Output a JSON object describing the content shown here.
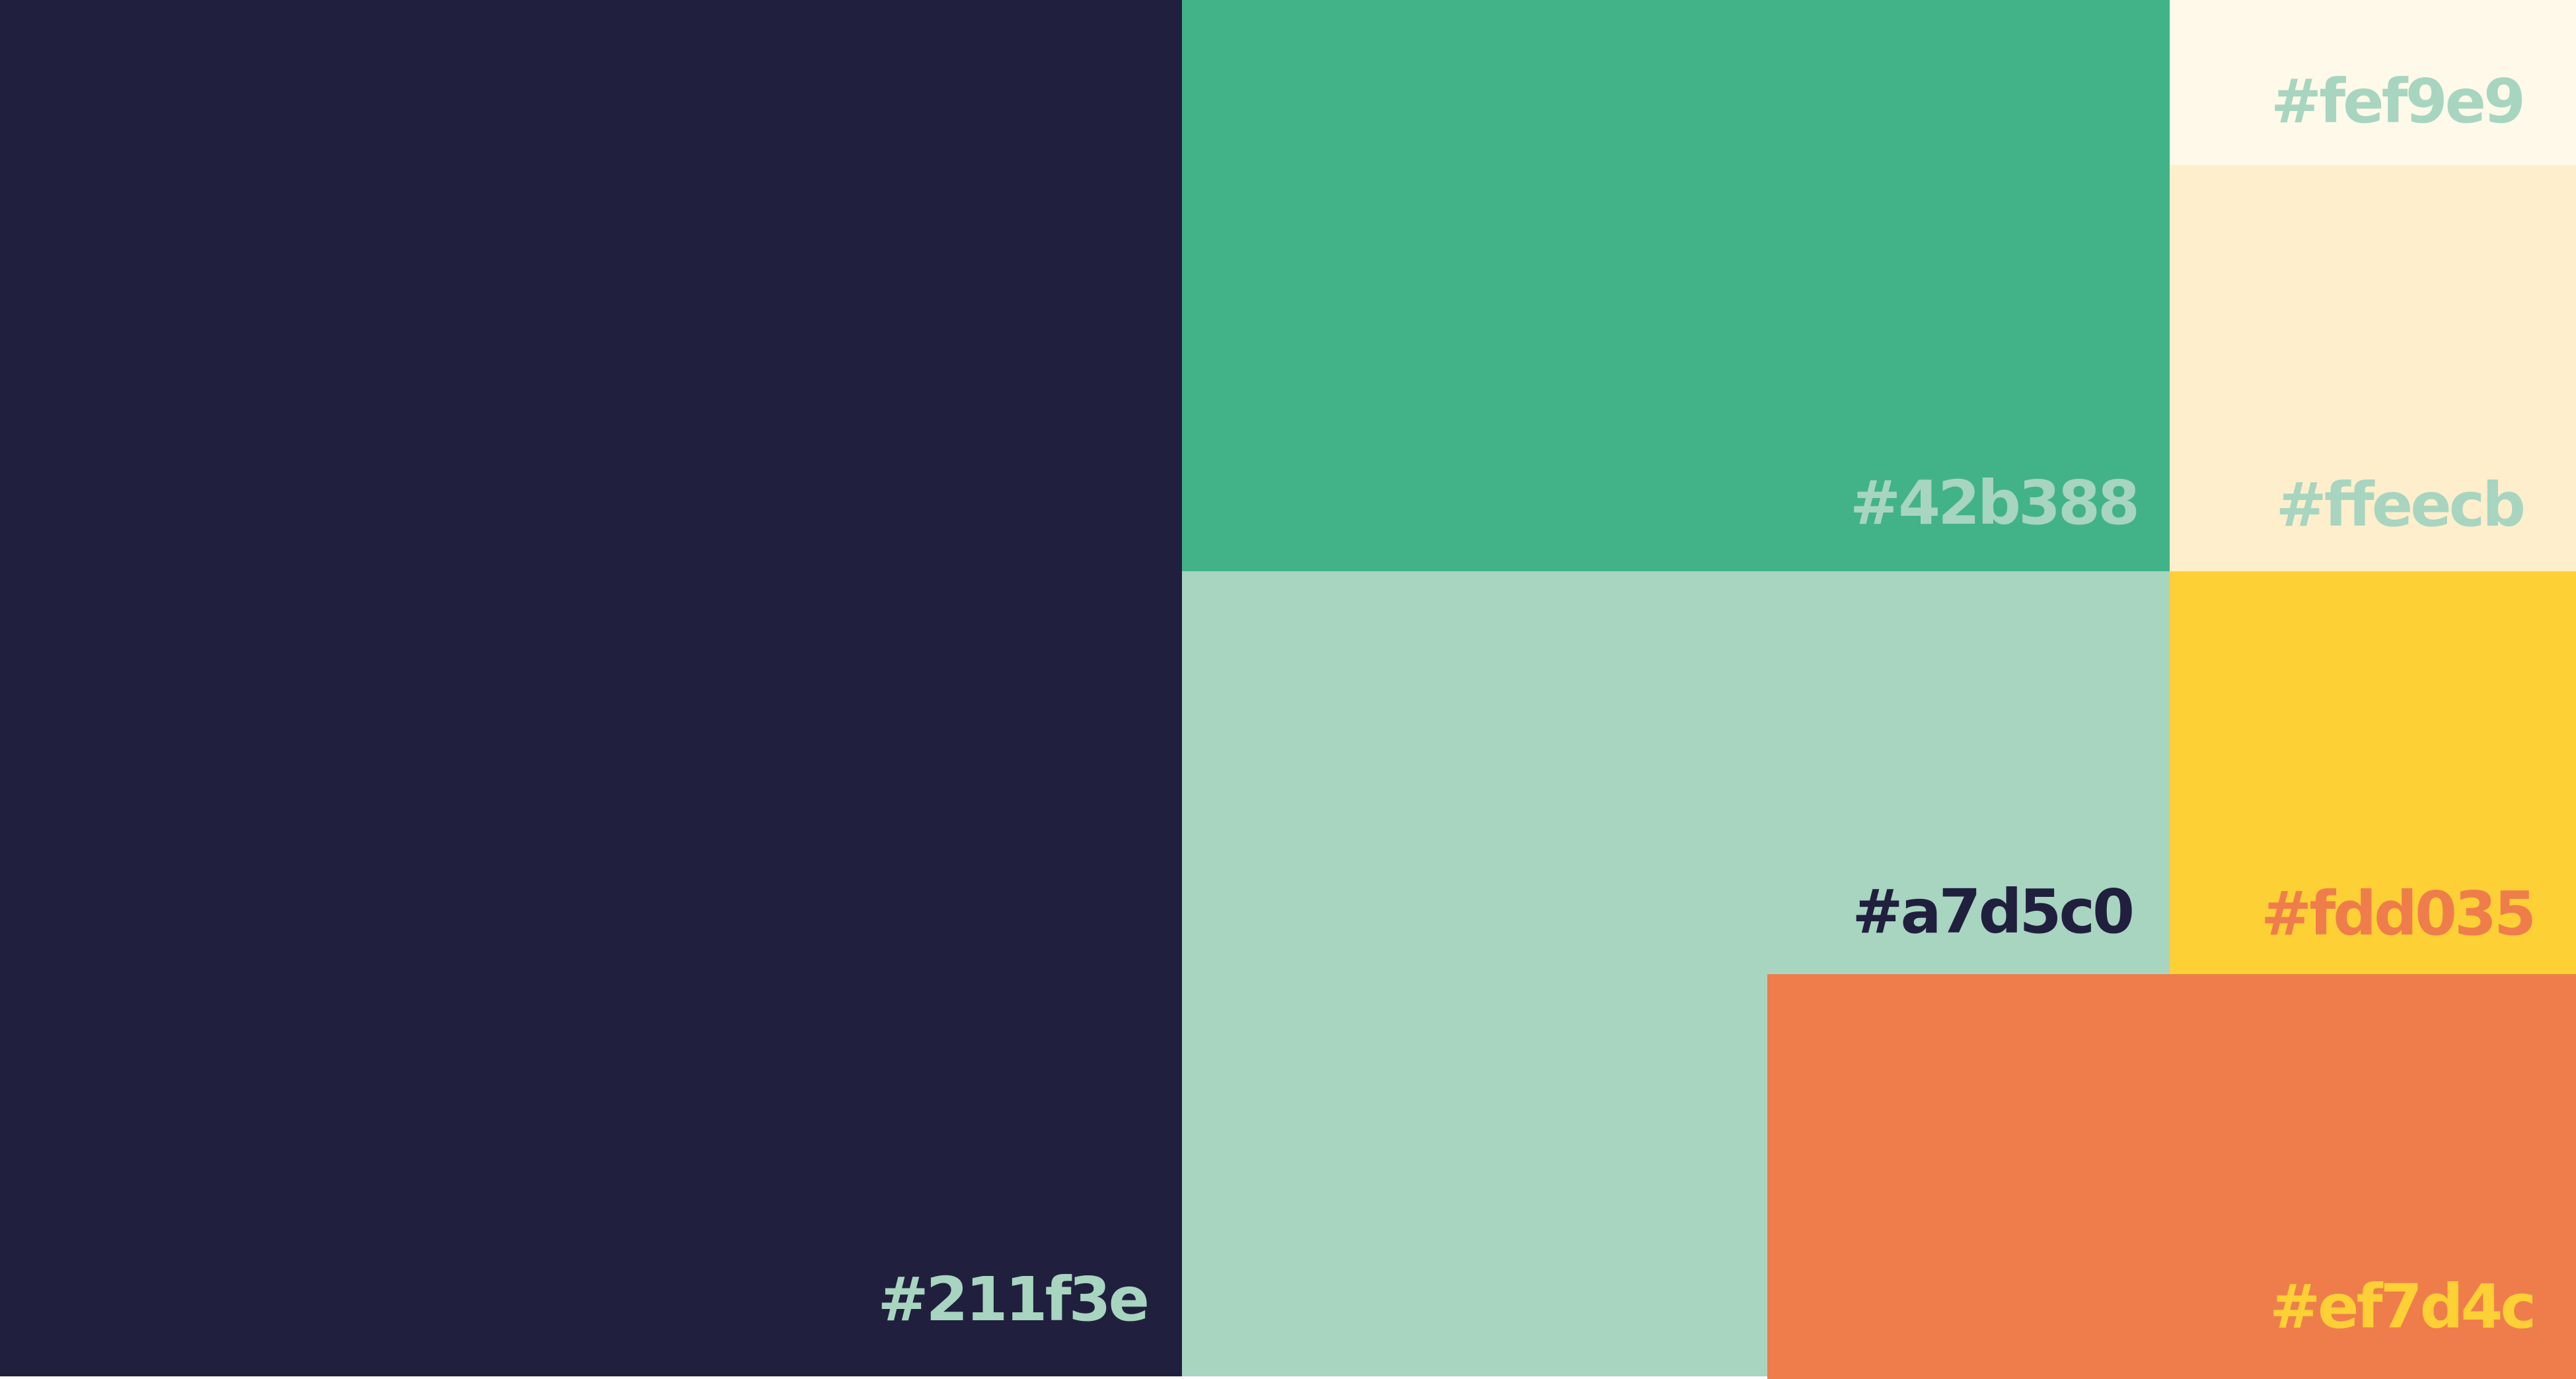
{
  "palette": {
    "swatches": [
      {
        "id": "sw-1",
        "color": "#211f3e",
        "label": "#211f3e",
        "label_color": "#a7d5c0"
      },
      {
        "id": "sw-2",
        "color": "#42b388",
        "label": "#42b388",
        "label_color": "#a7d5c0"
      },
      {
        "id": "sw-3",
        "color": "#fef9e9",
        "label": "#fef9e9",
        "label_color": "#a7d5c0"
      },
      {
        "id": "sw-4",
        "color": "#ffeecb",
        "label": "#ffeecb",
        "label_color": "#a7d5c0"
      },
      {
        "id": "sw-5",
        "color": "#a7d5c0",
        "label": "#a7d5c0",
        "label_color": "#211f3e"
      },
      {
        "id": "sw-6",
        "color": "#fdd035",
        "label": "#fdd035",
        "label_color": "#ef7d4c"
      },
      {
        "id": "sw-7",
        "color": "#ef7d4c",
        "label": "#ef7d4c",
        "label_color": "#fdd035"
      }
    ]
  }
}
